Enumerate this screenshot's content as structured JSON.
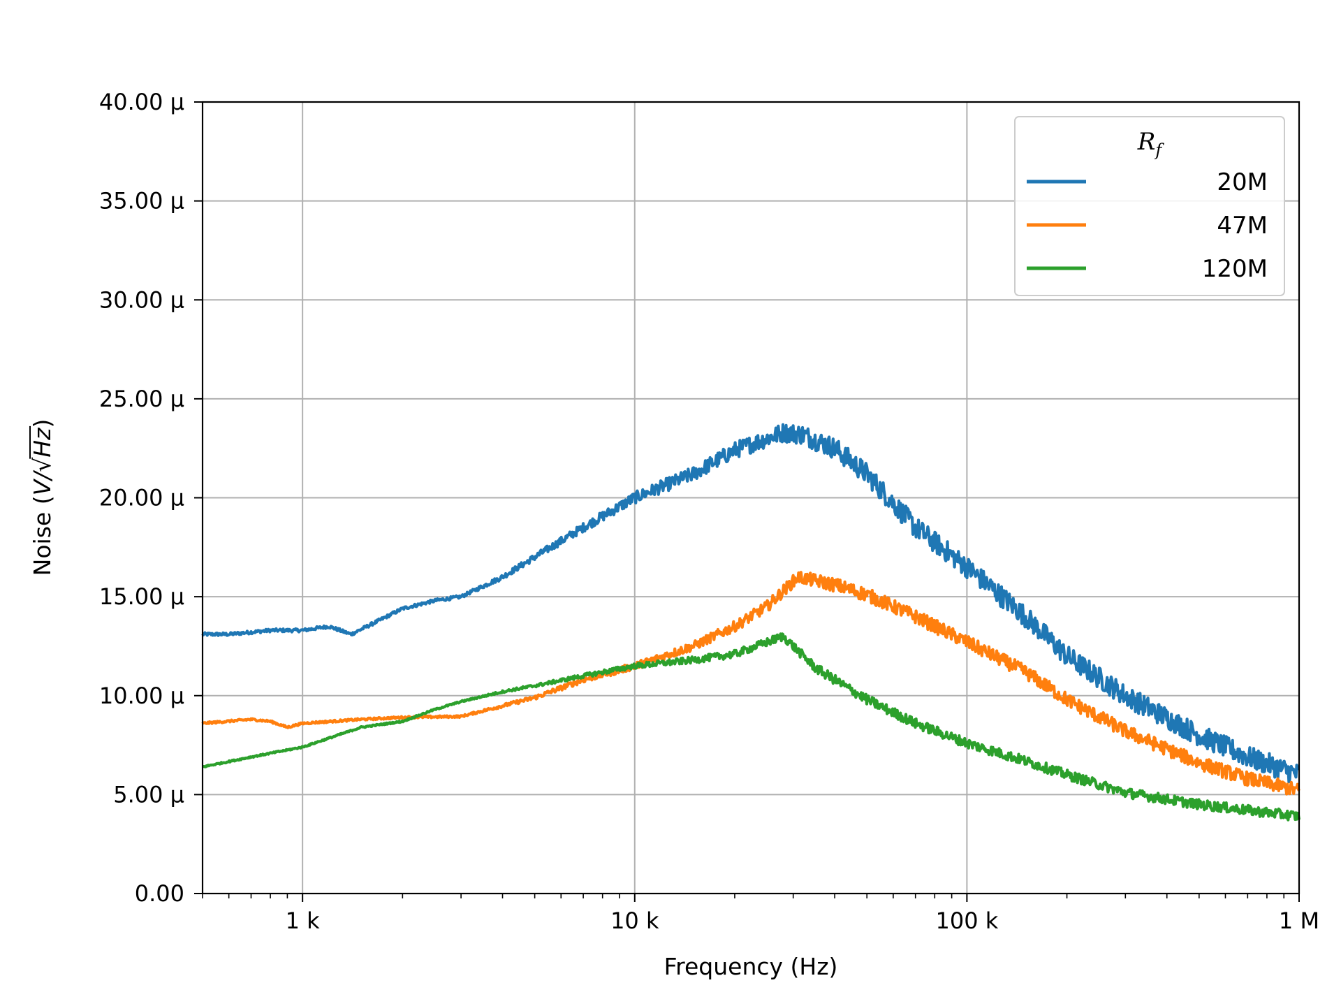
{
  "chart_data": {
    "type": "line",
    "title": "",
    "xlabel": "Frequency (Hz)",
    "ylabel": "Noise (V/√Hz)",
    "ylabel_parts": {
      "prefix": "Noise (",
      "var1": "V",
      "slash": "/",
      "root": "√",
      "var2": "Hz",
      "suffix": ")"
    },
    "x_scale": "log",
    "xlim": [
      500,
      1000000
    ],
    "ylim": [
      0,
      4e-05
    ],
    "grid": true,
    "x_ticks": [
      {
        "value": 1000,
        "label": "1 k"
      },
      {
        "value": 10000,
        "label": "10 k"
      },
      {
        "value": 100000,
        "label": "100 k"
      },
      {
        "value": 1000000,
        "label": "1 M"
      }
    ],
    "y_ticks": [
      {
        "value": 0,
        "label": "0.00"
      },
      {
        "value": 5e-06,
        "label": "5.00 µ"
      },
      {
        "value": 1e-05,
        "label": "10.00 µ"
      },
      {
        "value": 1.5e-05,
        "label": "15.00 µ"
      },
      {
        "value": 2e-05,
        "label": "20.00 µ"
      },
      {
        "value": 2.5e-05,
        "label": "25.00 µ"
      },
      {
        "value": 3e-05,
        "label": "30.00 µ"
      },
      {
        "value": 3.5e-05,
        "label": "35.00 µ"
      },
      {
        "value": 4e-05,
        "label": "40.00 µ"
      }
    ],
    "legend": {
      "title_base": "R",
      "title_sub": "f",
      "position": "top-right"
    },
    "series": [
      {
        "name": "20M",
        "color": "#1f77b4",
        "noise": 5.5e-07,
        "points": [
          [
            500,
            1.31e-05
          ],
          [
            600,
            1.31e-05
          ],
          [
            800,
            1.33e-05
          ],
          [
            1000,
            1.33e-05
          ],
          [
            1200,
            1.35e-05
          ],
          [
            1400,
            1.31e-05
          ],
          [
            1700,
            1.38e-05
          ],
          [
            2000,
            1.44e-05
          ],
          [
            2500,
            1.48e-05
          ],
          [
            3000,
            1.5e-05
          ],
          [
            4000,
            1.6e-05
          ],
          [
            5000,
            1.7e-05
          ],
          [
            7000,
            1.85e-05
          ],
          [
            10000,
            2e-05
          ],
          [
            15000,
            2.12e-05
          ],
          [
            20000,
            2.24e-05
          ],
          [
            28000,
            2.33e-05
          ],
          [
            32000,
            2.32e-05
          ],
          [
            40000,
            2.25e-05
          ],
          [
            50000,
            2.12e-05
          ],
          [
            70000,
            1.85e-05
          ],
          [
            100000,
            1.65e-05
          ],
          [
            150000,
            1.4e-05
          ],
          [
            200000,
            1.2e-05
          ],
          [
            300000,
            1e-05
          ],
          [
            500000,
            8e-06
          ],
          [
            700000,
            6.9e-06
          ],
          [
            1000000,
            6e-06
          ]
        ]
      },
      {
        "name": "47M",
        "color": "#ff7f0e",
        "noise": 3.5e-07,
        "points": [
          [
            500,
            8.6e-06
          ],
          [
            700,
            8.8e-06
          ],
          [
            800,
            8.7e-06
          ],
          [
            900,
            8.4e-06
          ],
          [
            1000,
            8.6e-06
          ],
          [
            1500,
            8.8e-06
          ],
          [
            2000,
            8.9e-06
          ],
          [
            3000,
            8.95e-06
          ],
          [
            5000,
            9.9e-06
          ],
          [
            7000,
            1.08e-05
          ],
          [
            10000,
            1.15e-05
          ],
          [
            15000,
            1.25e-05
          ],
          [
            20000,
            1.35e-05
          ],
          [
            25000,
            1.45e-05
          ],
          [
            31000,
            1.6e-05
          ],
          [
            40000,
            1.56e-05
          ],
          [
            50000,
            1.51e-05
          ],
          [
            70000,
            1.4e-05
          ],
          [
            100000,
            1.27e-05
          ],
          [
            150000,
            1.12e-05
          ],
          [
            200000,
            9.8e-06
          ],
          [
            300000,
            8.2e-06
          ],
          [
            500000,
            6.6e-06
          ],
          [
            700000,
            5.8e-06
          ],
          [
            1000000,
            5.2e-06
          ]
        ]
      },
      {
        "name": "120M",
        "color": "#2ca02c",
        "noise": 2.5e-07,
        "points": [
          [
            500,
            6.4e-06
          ],
          [
            700,
            6.9e-06
          ],
          [
            1000,
            7.4e-06
          ],
          [
            1500,
            8.4e-06
          ],
          [
            2000,
            8.7e-06
          ],
          [
            2500,
            9.3e-06
          ],
          [
            3000,
            9.7e-06
          ],
          [
            4000,
            1.02e-05
          ],
          [
            5000,
            1.05e-05
          ],
          [
            7000,
            1.1e-05
          ],
          [
            10000,
            1.15e-05
          ],
          [
            15000,
            1.18e-05
          ],
          [
            20000,
            1.21e-05
          ],
          [
            28000,
            1.3e-05
          ],
          [
            35000,
            1.14e-05
          ],
          [
            50000,
            9.8e-06
          ],
          [
            70000,
            8.6e-06
          ],
          [
            100000,
            7.6e-06
          ],
          [
            150000,
            6.7e-06
          ],
          [
            200000,
            6e-06
          ],
          [
            300000,
            5.1e-06
          ],
          [
            500000,
            4.5e-06
          ],
          [
            1000000,
            3.9e-06
          ]
        ]
      }
    ]
  }
}
